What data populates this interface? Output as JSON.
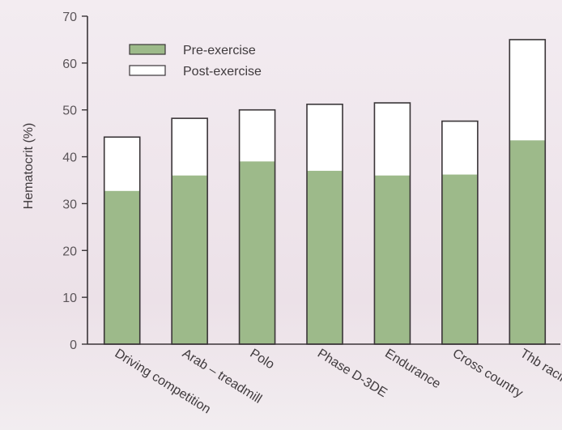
{
  "chart_data": {
    "type": "bar",
    "stacked": "overlay",
    "categories": [
      "Driving competition",
      "Arab – treadmill",
      "Polo",
      "Phase D-3DE",
      "Endurance",
      "Cross country",
      "Thb racing"
    ],
    "series": [
      {
        "name": "Pre-exercise",
        "values": [
          32.7,
          36,
          39,
          37,
          36,
          36.2,
          43.5
        ],
        "color": "#9dba8a"
      },
      {
        "name": "Post-exercise",
        "values": [
          44.2,
          48.2,
          50,
          51.2,
          51.5,
          47.6,
          65
        ],
        "color": "#ffffff"
      }
    ],
    "ylabel": "Hematocrit (%)",
    "xlabel": "",
    "ylim": [
      0,
      70
    ],
    "yticks": [
      0,
      10,
      20,
      30,
      40,
      50,
      60,
      70
    ],
    "grid": false,
    "legend_position": "top-left",
    "axis_color": "#3a3538",
    "background_color": "#eee4ea"
  }
}
